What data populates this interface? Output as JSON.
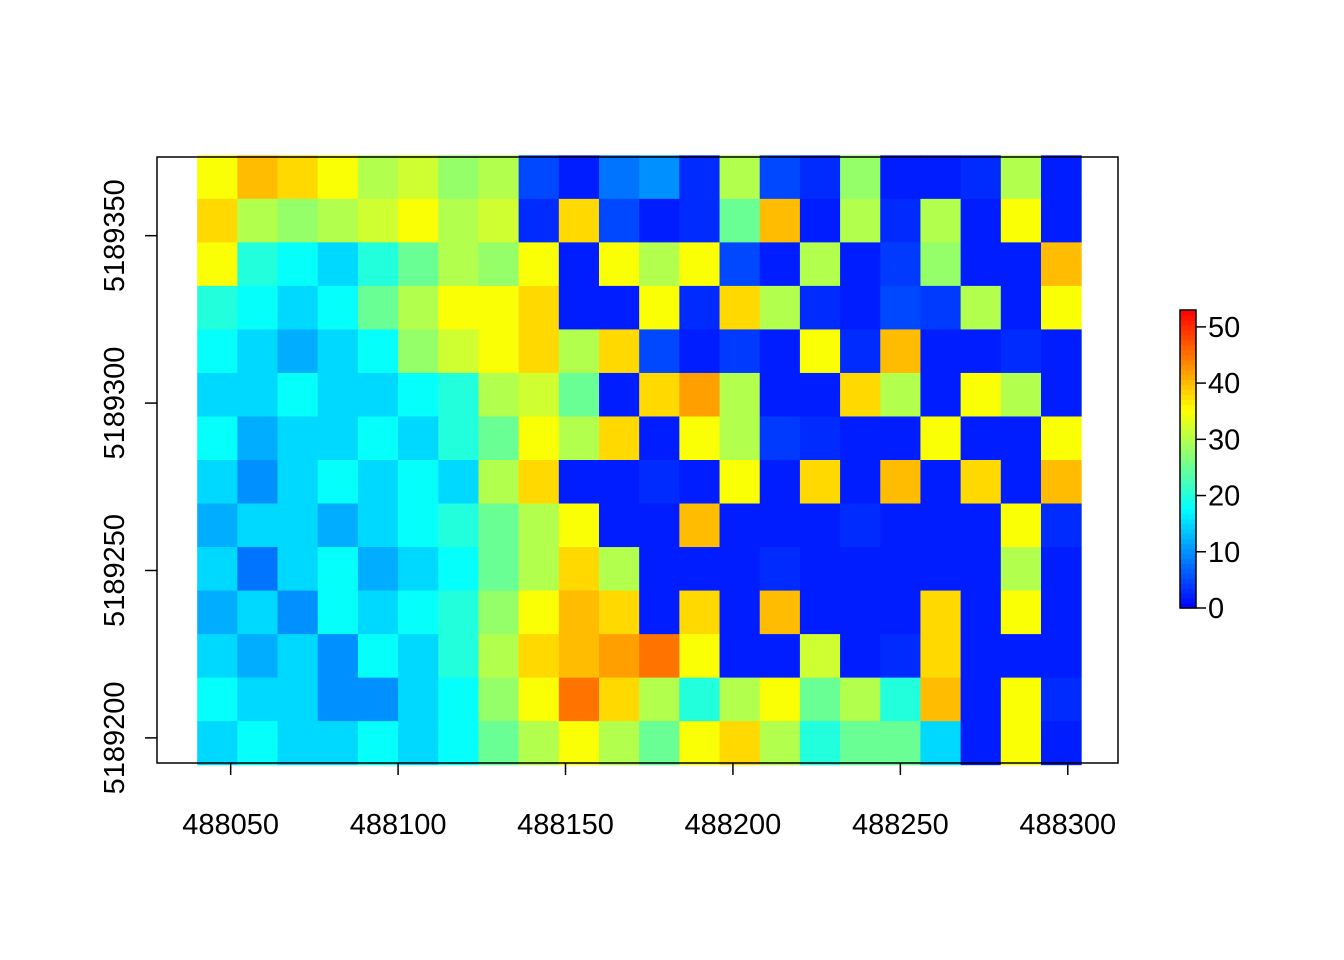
{
  "chart_data": {
    "type": "raster",
    "xlim": [
      488028,
      488315
    ],
    "ylim": [
      5189192.5,
      5189373.5
    ],
    "xticks": [
      488050,
      488100,
      488150,
      488200,
      488250,
      488300
    ],
    "yticks": [
      5189200,
      5189250,
      5189300,
      5189350
    ],
    "extent": {
      "x": [
        488040,
        488304
      ],
      "y": [
        5189192,
        5189374
      ]
    },
    "zlim": [
      0,
      53
    ],
    "zticks": [
      0,
      10,
      20,
      30,
      40,
      50
    ],
    "colors": [
      "#0000ff",
      "#00ffff",
      "#ffff00",
      "#ff0000"
    ],
    "z": [
      [
        35,
        40,
        38,
        35,
        30,
        32,
        28,
        30,
        5,
        2,
        8,
        10,
        3,
        30,
        5,
        3,
        28,
        2,
        2,
        3,
        30,
        2
      ],
      [
        38,
        30,
        28,
        30,
        32,
        35,
        30,
        32,
        3,
        38,
        5,
        2,
        3,
        25,
        40,
        2,
        30,
        3,
        30,
        2,
        35,
        2
      ],
      [
        35,
        20,
        18,
        15,
        20,
        25,
        30,
        28,
        35,
        2,
        35,
        30,
        35,
        5,
        2,
        30,
        2,
        4,
        28,
        2,
        2,
        40
      ],
      [
        20,
        18,
        15,
        18,
        25,
        30,
        35,
        35,
        38,
        2,
        2,
        35,
        3,
        38,
        30,
        3,
        2,
        5,
        4,
        30,
        2,
        35
      ],
      [
        18,
        15,
        12,
        15,
        18,
        28,
        32,
        35,
        38,
        30,
        38,
        5,
        2,
        4,
        2,
        35,
        3,
        40,
        2,
        2,
        3,
        2
      ],
      [
        15,
        15,
        18,
        15,
        15,
        18,
        20,
        30,
        32,
        25,
        2,
        38,
        42,
        30,
        2,
        2,
        38,
        30,
        2,
        35,
        30,
        2
      ],
      [
        18,
        12,
        15,
        15,
        18,
        15,
        20,
        25,
        35,
        30,
        38,
        2,
        35,
        30,
        4,
        3,
        2,
        2,
        35,
        2,
        2,
        35
      ],
      [
        15,
        10,
        15,
        18,
        15,
        18,
        15,
        30,
        38,
        2,
        2,
        3,
        2,
        35,
        2,
        38,
        2,
        40,
        2,
        38,
        2,
        40
      ],
      [
        12,
        15,
        15,
        12,
        15,
        18,
        20,
        25,
        30,
        35,
        2,
        2,
        40,
        2,
        2,
        2,
        3,
        2,
        2,
        2,
        35,
        3
      ],
      [
        15,
        8,
        15,
        18,
        12,
        15,
        18,
        25,
        30,
        38,
        30,
        2,
        2,
        2,
        3,
        2,
        2,
        2,
        2,
        2,
        30,
        2
      ],
      [
        12,
        15,
        10,
        18,
        15,
        18,
        20,
        28,
        35,
        40,
        38,
        2,
        38,
        2,
        40,
        2,
        2,
        2,
        38,
        2,
        35,
        2
      ],
      [
        15,
        12,
        15,
        10,
        18,
        15,
        20,
        30,
        38,
        40,
        42,
        45,
        35,
        2,
        2,
        32,
        2,
        3,
        38,
        2,
        2,
        2
      ],
      [
        18,
        15,
        15,
        10,
        10,
        15,
        18,
        28,
        35,
        45,
        38,
        30,
        20,
        30,
        35,
        25,
        30,
        20,
        40,
        2,
        35,
        3
      ],
      [
        15,
        18,
        15,
        15,
        18,
        15,
        18,
        25,
        30,
        35,
        30,
        25,
        35,
        38,
        30,
        20,
        25,
        25,
        15,
        2,
        35,
        2
      ]
    ]
  }
}
